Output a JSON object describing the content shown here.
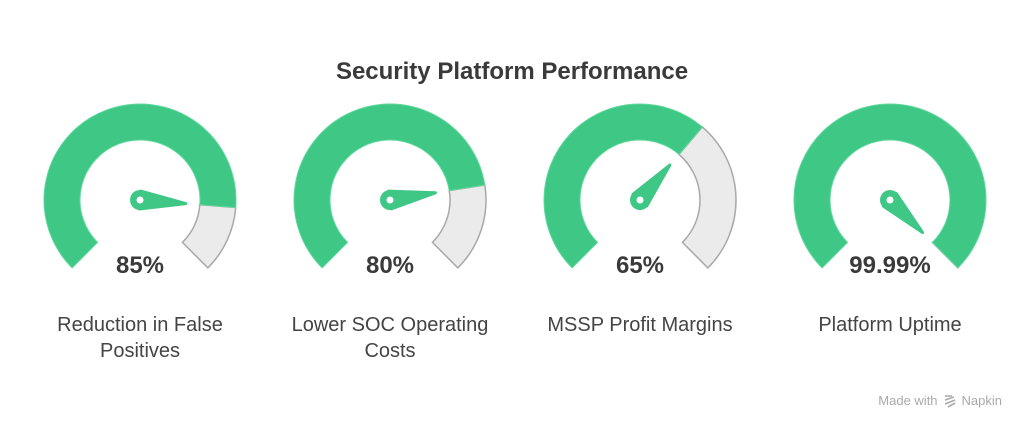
{
  "title": "Security Platform Performance",
  "colors": {
    "filled": "#3ec785",
    "unfilled": "#ebebeb",
    "unfilled_stroke": "#a9a9a9",
    "text": "#3a3a3a"
  },
  "chart_data": {
    "type": "gauge",
    "title": "Security Platform Performance",
    "range": [
      0,
      100
    ],
    "gauges": [
      {
        "label": "Reduction in False Positives",
        "value": 85,
        "display": "85%"
      },
      {
        "label": "Lower SOC Operating Costs",
        "value": 80,
        "display": "80%"
      },
      {
        "label": "MSSP Profit Margins",
        "value": 65,
        "display": "65%"
      },
      {
        "label": "Platform Uptime",
        "value": 99.99,
        "display": "99.99%"
      }
    ]
  },
  "credit": {
    "text": "Made with",
    "brand": "Napkin",
    "icon": "napkin-logo-icon"
  }
}
